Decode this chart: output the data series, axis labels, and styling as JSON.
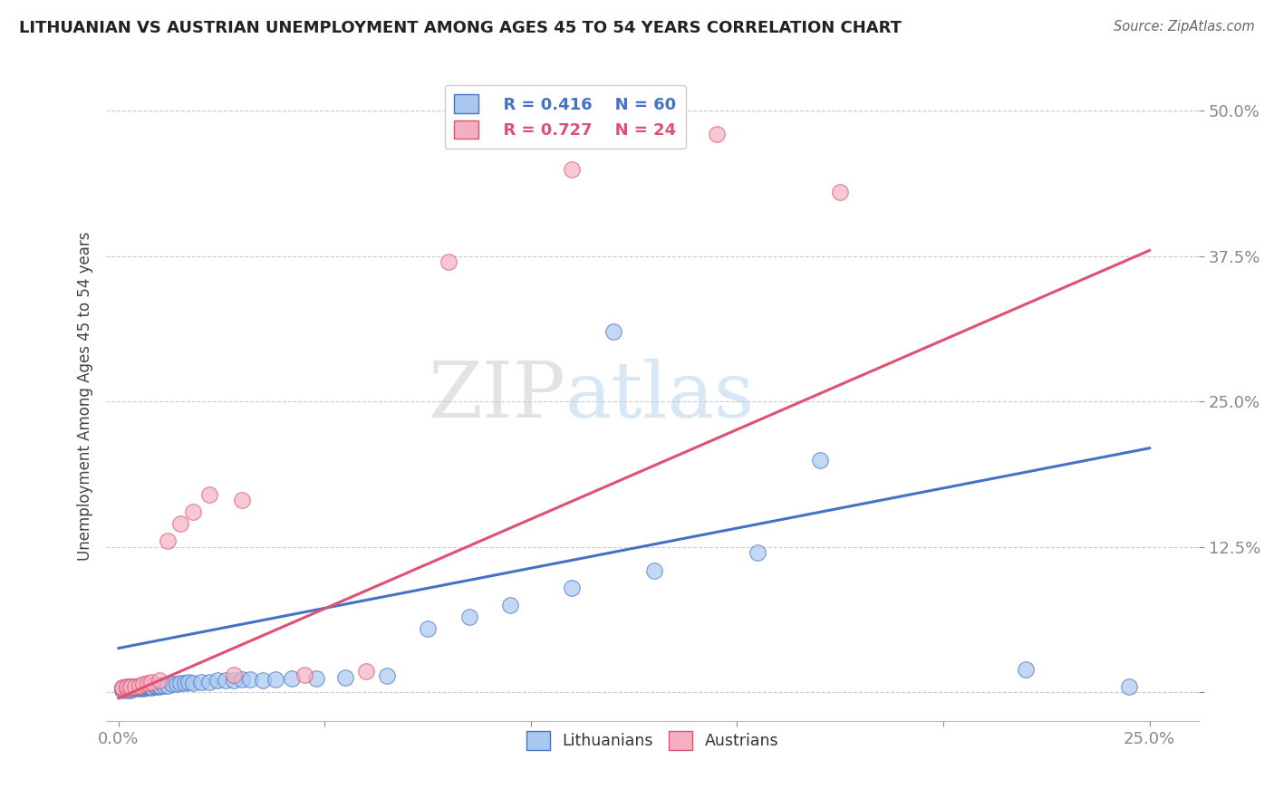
{
  "title": "LITHUANIAN VS AUSTRIAN UNEMPLOYMENT AMONG AGES 45 TO 54 YEARS CORRELATION CHART",
  "source": "Source: ZipAtlas.com",
  "xlim": [
    -0.003,
    0.262
  ],
  "ylim": [
    -0.025,
    0.535
  ],
  "ylabel": "Unemployment Among Ages 45 to 54 years",
  "blue_color": "#A8C8F0",
  "pink_color": "#F4B0C0",
  "blue_line_color": "#4472C4",
  "pink_line_color": "#E05070",
  "legend_R1": "R = 0.416",
  "legend_N1": "N = 60",
  "legend_R2": "R = 0.727",
  "legend_N2": "N = 24",
  "watermark_zip": "ZIP",
  "watermark_atlas": "atlas",
  "blue_scatter_x": [
    0.001,
    0.001,
    0.001,
    0.002,
    0.002,
    0.002,
    0.002,
    0.003,
    0.003,
    0.003,
    0.003,
    0.004,
    0.004,
    0.004,
    0.005,
    0.005,
    0.005,
    0.006,
    0.006,
    0.006,
    0.007,
    0.007,
    0.007,
    0.008,
    0.008,
    0.009,
    0.009,
    0.01,
    0.01,
    0.011,
    0.012,
    0.013,
    0.014,
    0.015,
    0.016,
    0.017,
    0.018,
    0.02,
    0.022,
    0.024,
    0.026,
    0.028,
    0.03,
    0.032,
    0.035,
    0.038,
    0.042,
    0.048,
    0.055,
    0.065,
    0.075,
    0.085,
    0.095,
    0.11,
    0.13,
    0.155,
    0.12,
    0.17,
    0.22,
    0.245
  ],
  "blue_scatter_y": [
    0.002,
    0.003,
    0.004,
    0.002,
    0.003,
    0.004,
    0.005,
    0.002,
    0.003,
    0.004,
    0.005,
    0.003,
    0.004,
    0.005,
    0.003,
    0.004,
    0.005,
    0.003,
    0.004,
    0.005,
    0.004,
    0.005,
    0.006,
    0.004,
    0.005,
    0.005,
    0.006,
    0.005,
    0.006,
    0.006,
    0.006,
    0.007,
    0.007,
    0.008,
    0.008,
    0.009,
    0.008,
    0.009,
    0.009,
    0.01,
    0.01,
    0.01,
    0.011,
    0.011,
    0.01,
    0.011,
    0.012,
    0.012,
    0.013,
    0.014,
    0.055,
    0.065,
    0.075,
    0.09,
    0.105,
    0.12,
    0.31,
    0.2,
    0.02,
    0.005
  ],
  "pink_scatter_x": [
    0.001,
    0.001,
    0.002,
    0.002,
    0.003,
    0.003,
    0.004,
    0.005,
    0.006,
    0.007,
    0.008,
    0.01,
    0.012,
    0.015,
    0.018,
    0.022,
    0.028,
    0.03,
    0.045,
    0.06,
    0.08,
    0.11,
    0.145,
    0.175
  ],
  "pink_scatter_y": [
    0.003,
    0.004,
    0.003,
    0.005,
    0.004,
    0.005,
    0.005,
    0.006,
    0.007,
    0.008,
    0.009,
    0.01,
    0.13,
    0.145,
    0.155,
    0.17,
    0.015,
    0.165,
    0.015,
    0.018,
    0.37,
    0.45,
    0.48,
    0.43
  ],
  "blue_trend_x": [
    0.0,
    0.25
  ],
  "blue_trend_y": [
    0.038,
    0.21
  ],
  "pink_trend_x": [
    0.0,
    0.25
  ],
  "pink_trend_y": [
    -0.005,
    0.38
  ]
}
